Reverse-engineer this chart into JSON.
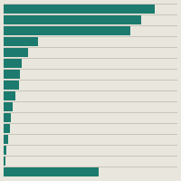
{
  "values": [
    100,
    91,
    84,
    23,
    16,
    12,
    11,
    10,
    8,
    6,
    5,
    4,
    3,
    2,
    1,
    63
  ],
  "bar_color": "#1c7b6e",
  "background_color": "#e8e6dd",
  "grid_color": "#b0aca0",
  "bar_height": 0.78,
  "figsize": [
    2.0,
    2.0
  ],
  "dpi": 100,
  "xlim_max": 115,
  "n_bars": 16
}
